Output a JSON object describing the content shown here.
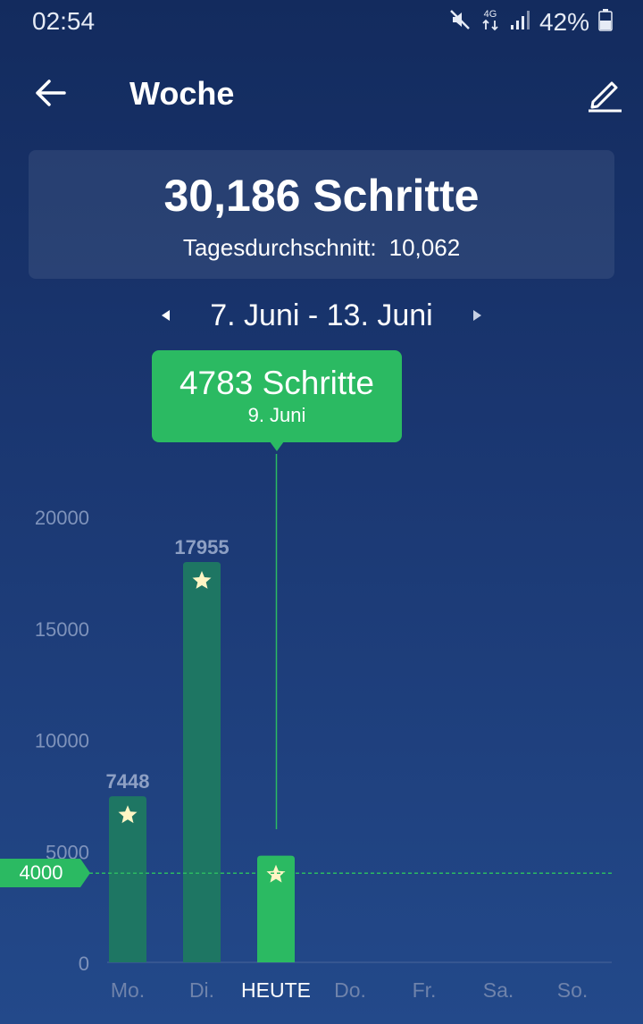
{
  "status": {
    "time": "02:54",
    "network": "4G",
    "battery": "42%"
  },
  "header": {
    "title": "Woche"
  },
  "summary": {
    "total": "30,186 Schritte",
    "avg_label": "Tagesdurchschnitt:",
    "avg_value": "10,062"
  },
  "range": {
    "label": "7. Juni - 13. Juni"
  },
  "tooltip": {
    "value": "4783 Schritte",
    "date": "9. Juni"
  },
  "goal": {
    "label": "4000",
    "value": 4000
  },
  "colors": {
    "bar_past": "#1e7663",
    "bar_today": "#2bba62",
    "goal_line": "#2bba62",
    "star": "#fff5c4"
  },
  "chart_data": {
    "type": "bar",
    "categories": [
      "Mo.",
      "Di.",
      "HEUTE",
      "Do.",
      "Fr.",
      "Sa.",
      "So."
    ],
    "values": [
      7448,
      17955,
      4783,
      null,
      null,
      null,
      null
    ],
    "value_labels": [
      "7448",
      "17955",
      "",
      "",
      "",
      "",
      ""
    ],
    "yticks": [
      0,
      5000,
      10000,
      15000,
      20000
    ],
    "ylim": [
      0,
      20000
    ],
    "goal_line": 4000,
    "selected_index": 2,
    "today_index": 2,
    "grid": false
  }
}
